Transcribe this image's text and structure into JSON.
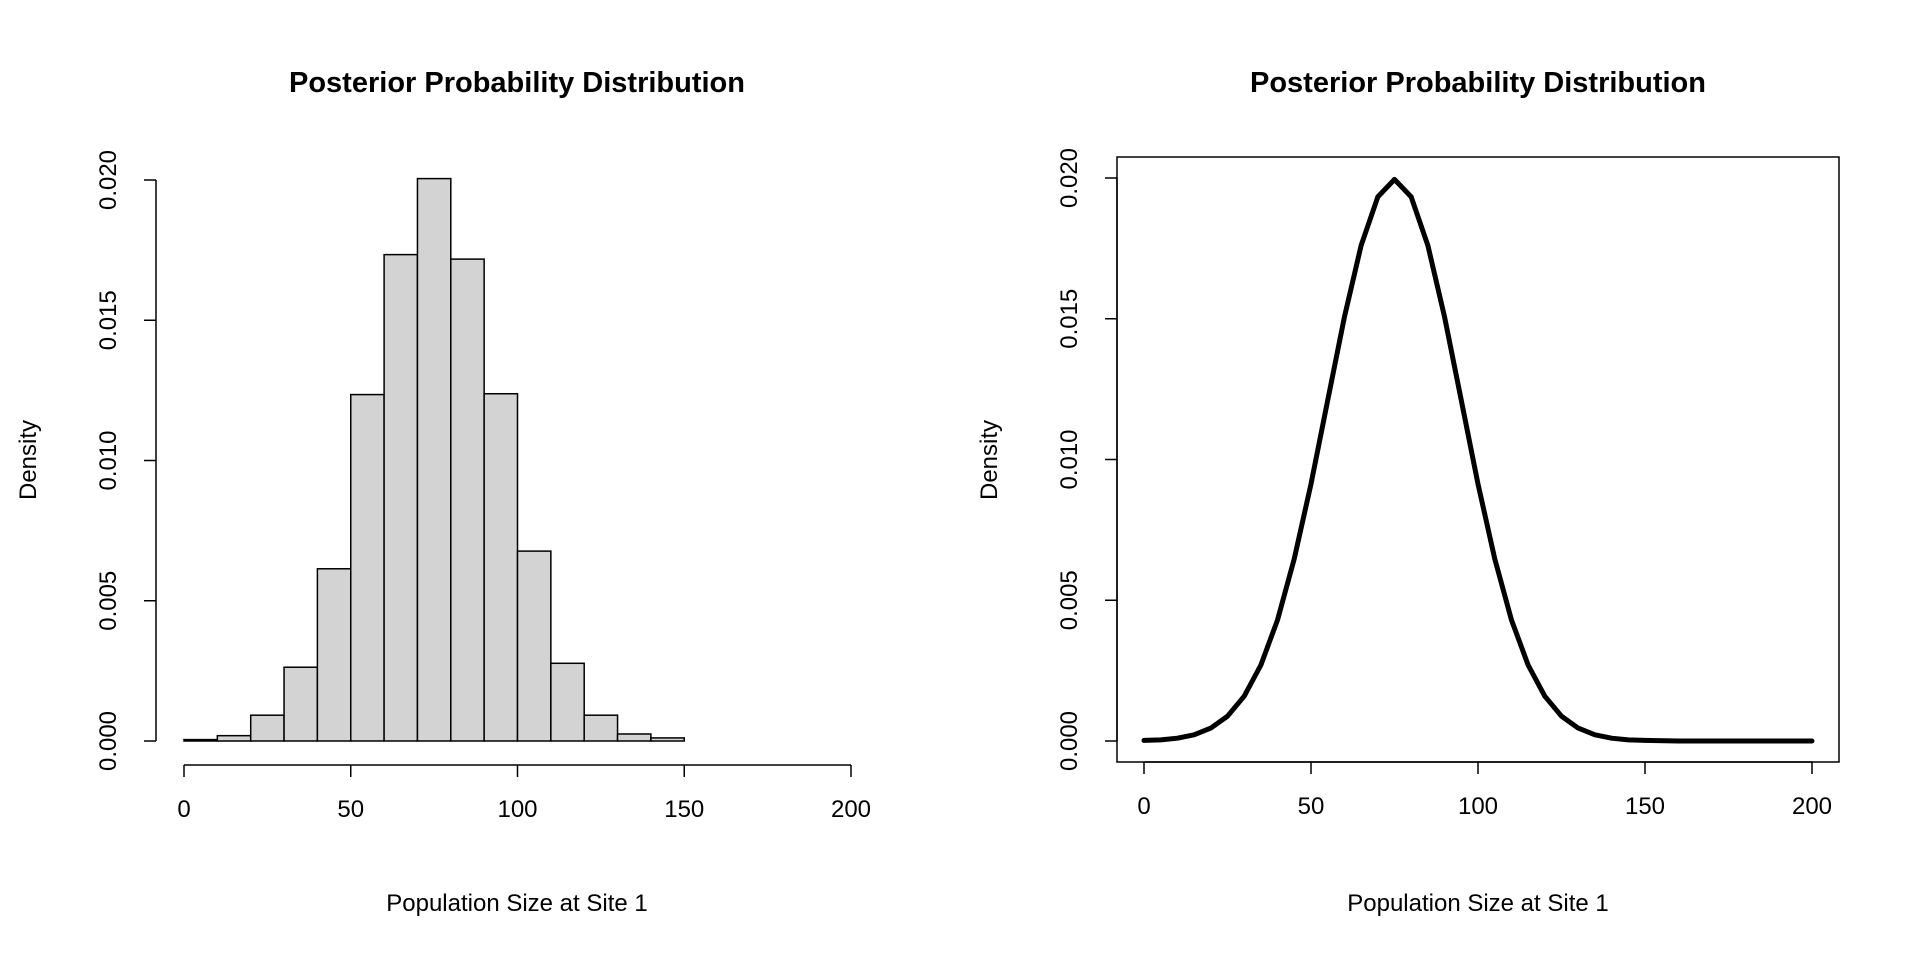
{
  "chart_data": [
    {
      "type": "bar",
      "subtype": "histogram",
      "title": "Posterior Probability Distribution",
      "xlabel": "Population Size at Site 1",
      "ylabel": "Density",
      "xlim": [
        0,
        200
      ],
      "ylim": [
        0,
        0.02
      ],
      "xticks": [
        "0",
        "50",
        "100",
        "150",
        "200"
      ],
      "yticks": [
        "0.000",
        "0.005",
        "0.010",
        "0.015",
        "0.020"
      ],
      "bin_width": 10,
      "bins": [
        0,
        10,
        20,
        30,
        40,
        50,
        60,
        70,
        80,
        90,
        100,
        110,
        120,
        130,
        140
      ],
      "values": [
        5e-05,
        0.00019,
        0.00092,
        0.00263,
        0.00614,
        0.01235,
        0.01734,
        0.02005,
        0.01718,
        0.01238,
        0.00677,
        0.00277,
        0.00092,
        0.00025,
        0.00011
      ],
      "fill": "#d3d3d3"
    },
    {
      "type": "line",
      "title": "Posterior Probability Distribution",
      "xlabel": "Population Size at Site 1",
      "ylabel": "Density",
      "xlim": [
        0,
        200
      ],
      "ylim": [
        0,
        0.02
      ],
      "xticks": [
        "0",
        "50",
        "100",
        "150",
        "200"
      ],
      "yticks": [
        "0.000",
        "0.005",
        "0.010",
        "0.015",
        "0.020"
      ],
      "x": [
        0,
        5,
        10,
        15,
        20,
        25,
        30,
        35,
        40,
        45,
        50,
        55,
        60,
        65,
        70,
        75,
        80,
        85,
        90,
        95,
        100,
        105,
        110,
        115,
        120,
        125,
        130,
        135,
        140,
        145,
        150,
        160,
        170,
        180,
        190,
        200
      ],
      "y": [
        2e-05,
        4e-05,
        0.0001,
        0.00022,
        0.00046,
        0.00088,
        0.00159,
        0.0027,
        0.00431,
        0.00648,
        0.00913,
        0.0121,
        0.01506,
        0.0176,
        0.01933,
        0.01995,
        0.01933,
        0.0176,
        0.01506,
        0.0121,
        0.00913,
        0.00648,
        0.00431,
        0.0027,
        0.00159,
        0.00088,
        0.00046,
        0.00022,
        0.0001,
        4e-05,
        2e-05,
        0,
        0,
        0,
        0,
        0
      ],
      "color": "#000000"
    }
  ]
}
